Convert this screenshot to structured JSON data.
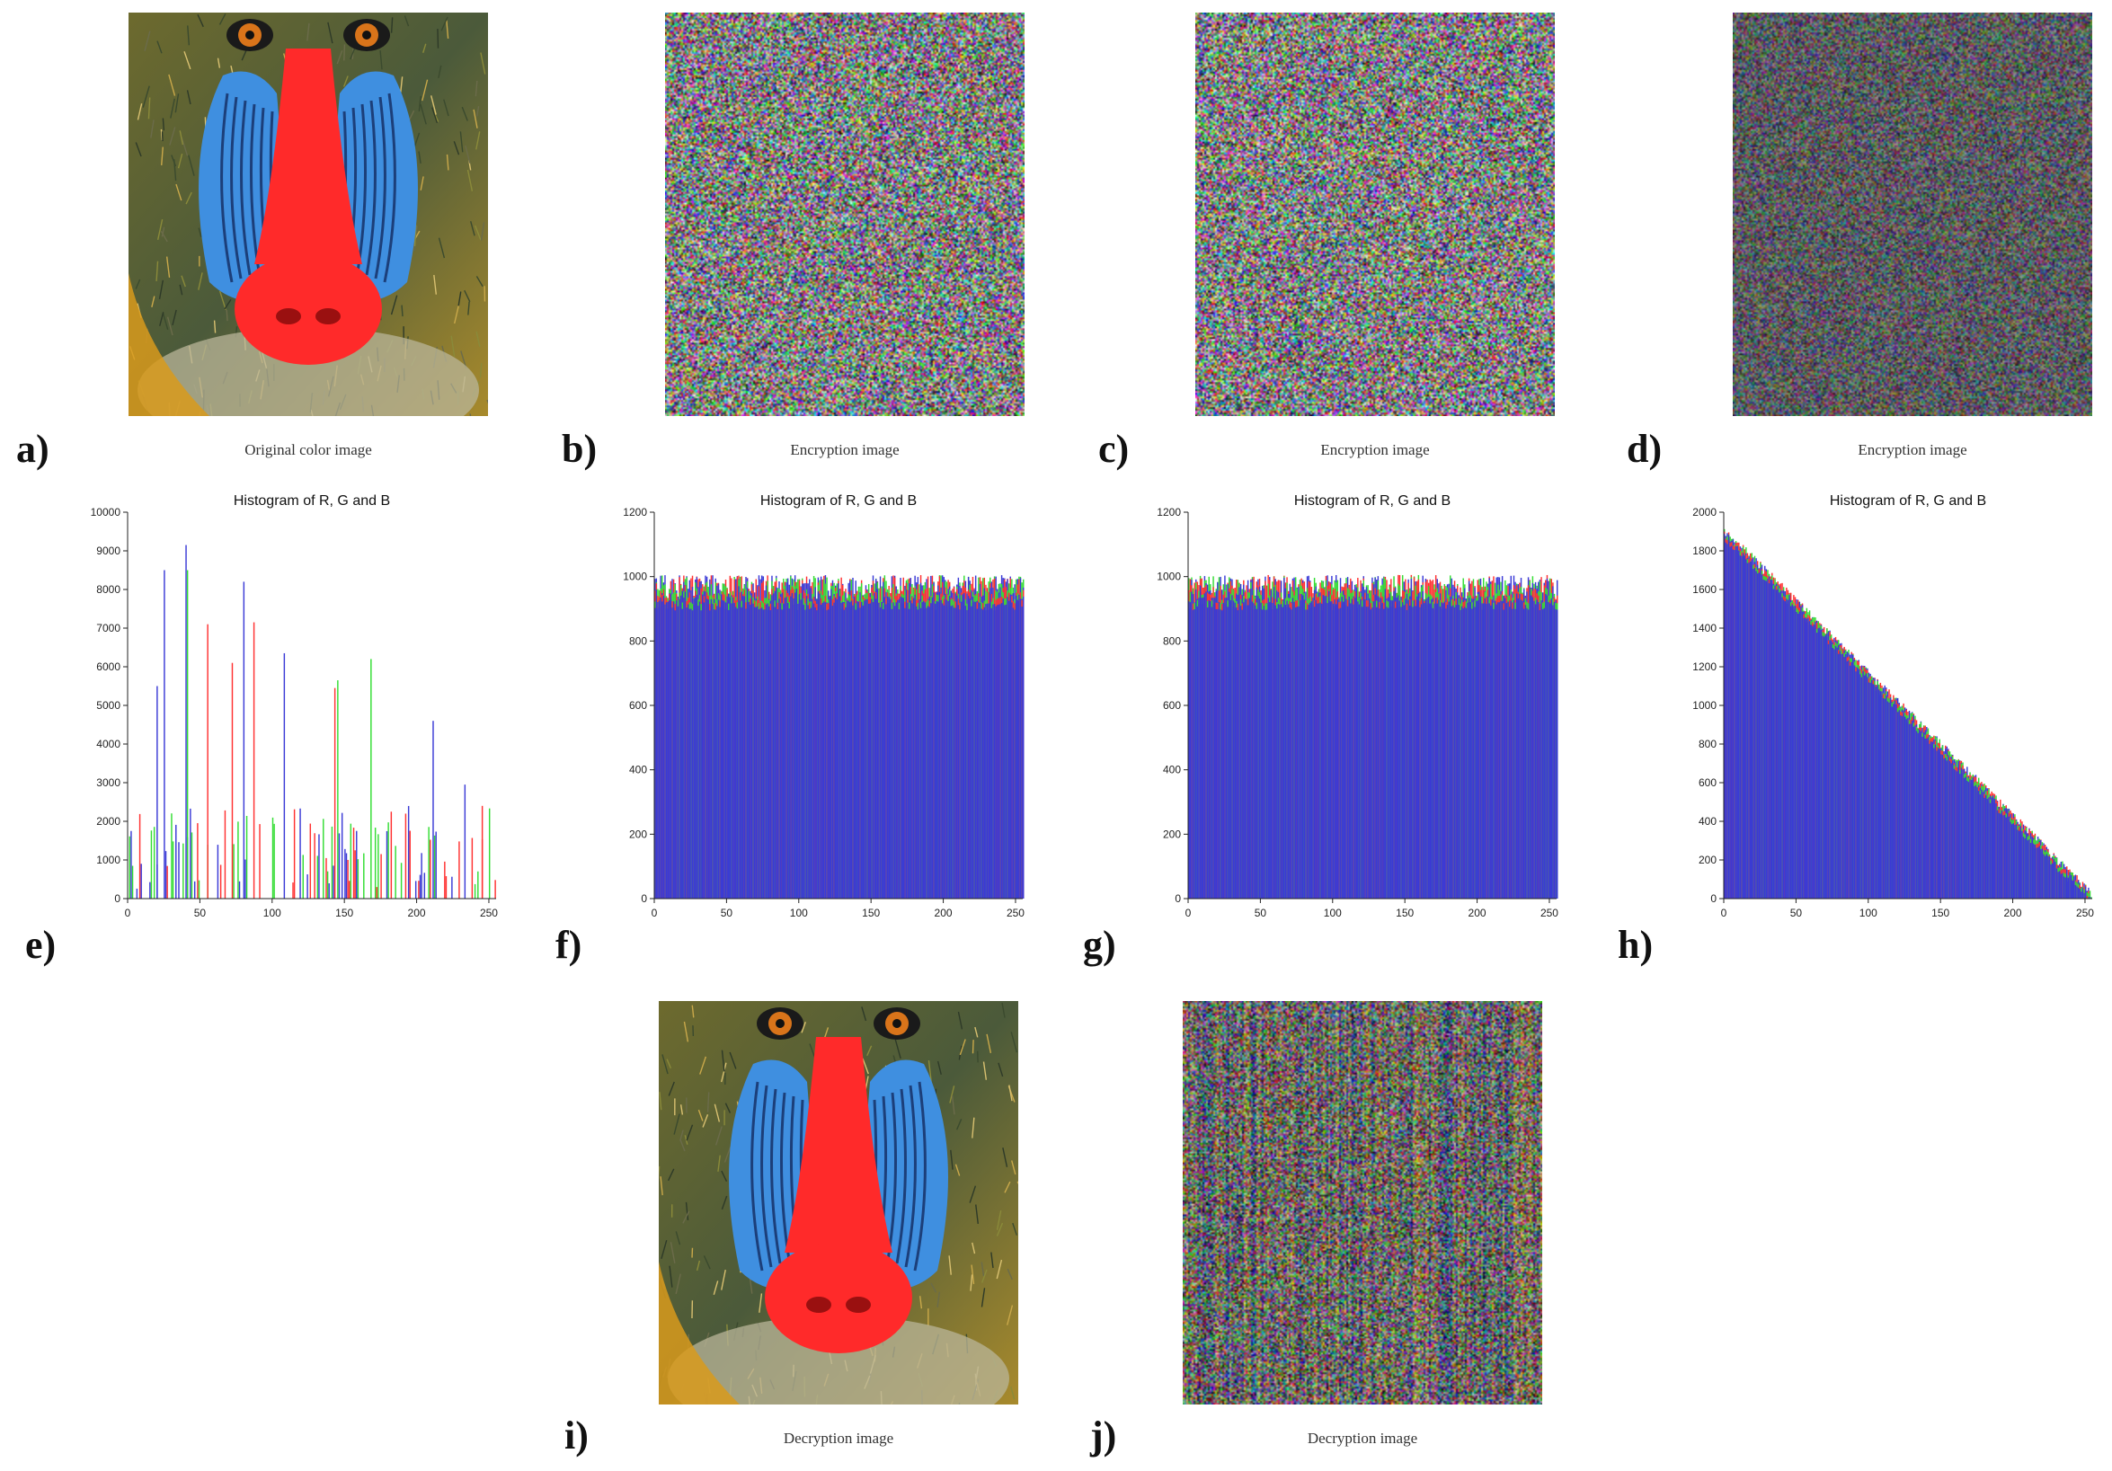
{
  "panels": {
    "a": {
      "letter": "a)",
      "caption": "Original color image"
    },
    "b": {
      "letter": "b)",
      "caption": "Encryption image"
    },
    "c": {
      "letter": "c)",
      "caption": "Encryption image"
    },
    "d": {
      "letter": "d)",
      "caption": "Encryption image"
    },
    "e": {
      "letter": "e)"
    },
    "f": {
      "letter": "f)"
    },
    "g": {
      "letter": "g)"
    },
    "h": {
      "letter": "h)"
    },
    "i": {
      "letter": "i)",
      "caption": "Decryption image"
    },
    "j": {
      "letter": "j)",
      "caption": "Decryption image"
    }
  },
  "colors": {
    "red": "#ff3030",
    "green": "#33dd33",
    "blue": "#3a3ad6",
    "mandrill_nose": "#ff2a2a",
    "mandrill_cheek": "#3f8fe0"
  },
  "chart_data": [
    {
      "panel": "e",
      "type": "bar",
      "title": "Histogram of R, G and B",
      "xlabel": "",
      "ylabel": "",
      "xlim": [
        0,
        255
      ],
      "ylim": [
        0,
        10000
      ],
      "xticks": [
        0,
        50,
        100,
        150,
        200,
        250
      ],
      "yticks": [
        0,
        1000,
        2000,
        3000,
        4000,
        5000,
        6000,
        7000,
        8000,
        9000,
        10000
      ],
      "shape": "sparse",
      "peaks": [
        {
          "x": 20,
          "y": 5500,
          "channel": "blue"
        },
        {
          "x": 25,
          "y": 8500,
          "channel": "blue"
        },
        {
          "x": 40,
          "y": 9150,
          "channel": "blue"
        },
        {
          "x": 41,
          "y": 8500,
          "channel": "green"
        },
        {
          "x": 55,
          "y": 7100,
          "channel": "red"
        },
        {
          "x": 72,
          "y": 6100,
          "channel": "red"
        },
        {
          "x": 80,
          "y": 8200,
          "channel": "blue"
        },
        {
          "x": 87,
          "y": 7150,
          "channel": "red"
        },
        {
          "x": 108,
          "y": 6350,
          "channel": "blue"
        },
        {
          "x": 143,
          "y": 5450,
          "channel": "red"
        },
        {
          "x": 145,
          "y": 5650,
          "channel": "green"
        },
        {
          "x": 168,
          "y": 6200,
          "channel": "green"
        },
        {
          "x": 211,
          "y": 4600,
          "channel": "blue"
        },
        {
          "x": 233,
          "y": 2950,
          "channel": "blue"
        },
        {
          "x": 245,
          "y": 2400,
          "channel": "red"
        }
      ]
    },
    {
      "panel": "f",
      "type": "bar",
      "title": "Histogram of R, G and B",
      "xlabel": "",
      "ylabel": "",
      "xlim": [
        0,
        255
      ],
      "ylim": [
        0,
        1200
      ],
      "xticks": [
        0,
        50,
        100,
        150,
        200,
        250
      ],
      "yticks": [
        0,
        200,
        400,
        600,
        800,
        1000,
        1200
      ],
      "shape": "uniform",
      "mean": 960,
      "spread": 45
    },
    {
      "panel": "g",
      "type": "bar",
      "title": "Histogram of R, G and B",
      "xlabel": "",
      "ylabel": "",
      "xlim": [
        0,
        255
      ],
      "ylim": [
        0,
        1200
      ],
      "xticks": [
        0,
        50,
        100,
        150,
        200,
        250
      ],
      "yticks": [
        0,
        200,
        400,
        600,
        800,
        1000,
        1200
      ],
      "shape": "uniform",
      "mean": 960,
      "spread": 45
    },
    {
      "panel": "h",
      "type": "bar",
      "title": "Histogram of R, G and B",
      "xlabel": "",
      "ylabel": "",
      "xlim": [
        0,
        255
      ],
      "ylim": [
        0,
        2000
      ],
      "xticks": [
        0,
        50,
        100,
        150,
        200,
        250
      ],
      "yticks": [
        0,
        200,
        400,
        600,
        800,
        1000,
        1200,
        1400,
        1600,
        1800,
        2000
      ],
      "shape": "linear-decreasing",
      "start": 1900,
      "end": 10
    }
  ]
}
